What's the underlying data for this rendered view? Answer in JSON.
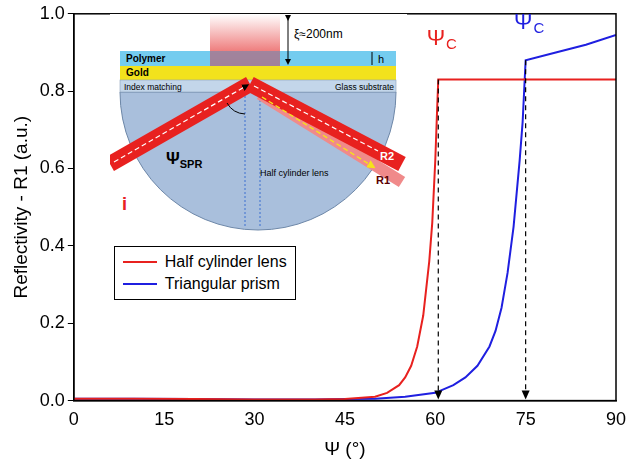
{
  "chart_data": {
    "type": "line",
    "x_label": "Ψ (°)",
    "y_label": "Reflectivity - R1 (a.u.)",
    "xlim": [
      0,
      90
    ],
    "xticks": [
      0,
      15,
      30,
      45,
      60,
      75,
      90
    ],
    "ylim": [
      0,
      1
    ],
    "yticks": [
      {
        "value": 0,
        "label": "0.0"
      },
      0.2,
      0.4,
      0.6,
      0.8,
      {
        "value": 1,
        "label": "1.0"
      }
    ],
    "grid": false,
    "legend": "left",
    "series": [
      {
        "name": "Half cylinder lens",
        "color": "#e8211f",
        "x": [
          0,
          10,
          20,
          30,
          40,
          45,
          50,
          52,
          54,
          55,
          56,
          57,
          58,
          59,
          59.5,
          60,
          60.3,
          60.5,
          61,
          70,
          80,
          90
        ],
        "values": [
          0.005,
          0.005,
          0.004,
          0.003,
          0.003,
          0.004,
          0.01,
          0.02,
          0.04,
          0.06,
          0.09,
          0.14,
          0.22,
          0.36,
          0.46,
          0.62,
          0.75,
          0.83,
          0.83,
          0.83,
          0.83,
          0.83
        ]
      },
      {
        "name": "Triangular prism",
        "color": "#1f1fe0",
        "x": [
          0,
          10,
          20,
          30,
          40,
          45,
          50,
          55,
          60,
          63,
          65,
          67,
          69,
          70,
          71,
          72,
          73,
          74,
          74.5,
          75,
          80,
          85,
          90
        ],
        "values": [
          0.005,
          0.005,
          0.004,
          0.003,
          0.003,
          0.004,
          0.005,
          0.01,
          0.02,
          0.04,
          0.06,
          0.09,
          0.14,
          0.18,
          0.24,
          0.33,
          0.45,
          0.62,
          0.72,
          0.88,
          0.9,
          0.92,
          0.945
        ]
      }
    ],
    "annotations": [
      {
        "text": "Ψ",
        "subscript": "C",
        "x": 61,
        "y": 0.92,
        "color": "#e8211f"
      },
      {
        "text": "Ψ",
        "subscript": "C",
        "x": 75.5,
        "y": 0.96,
        "color": "#1f1fe0"
      }
    ],
    "arrows": [
      {
        "x": 60.5,
        "from": 0.83,
        "to": 0
      },
      {
        "x": 75,
        "from": 0.88,
        "to": 0
      }
    ],
    "inset": {
      "field_depth": "ξ≈200nm",
      "thickness": "h",
      "layers": [
        "Polymer",
        "Gold",
        "Index matching",
        "Glass substrate"
      ],
      "angle": {
        "text": "Ψ",
        "subscript": "SPR"
      },
      "lens": "Half cylinder lens",
      "beams": [
        "i",
        "R1",
        "R2"
      ]
    }
  }
}
